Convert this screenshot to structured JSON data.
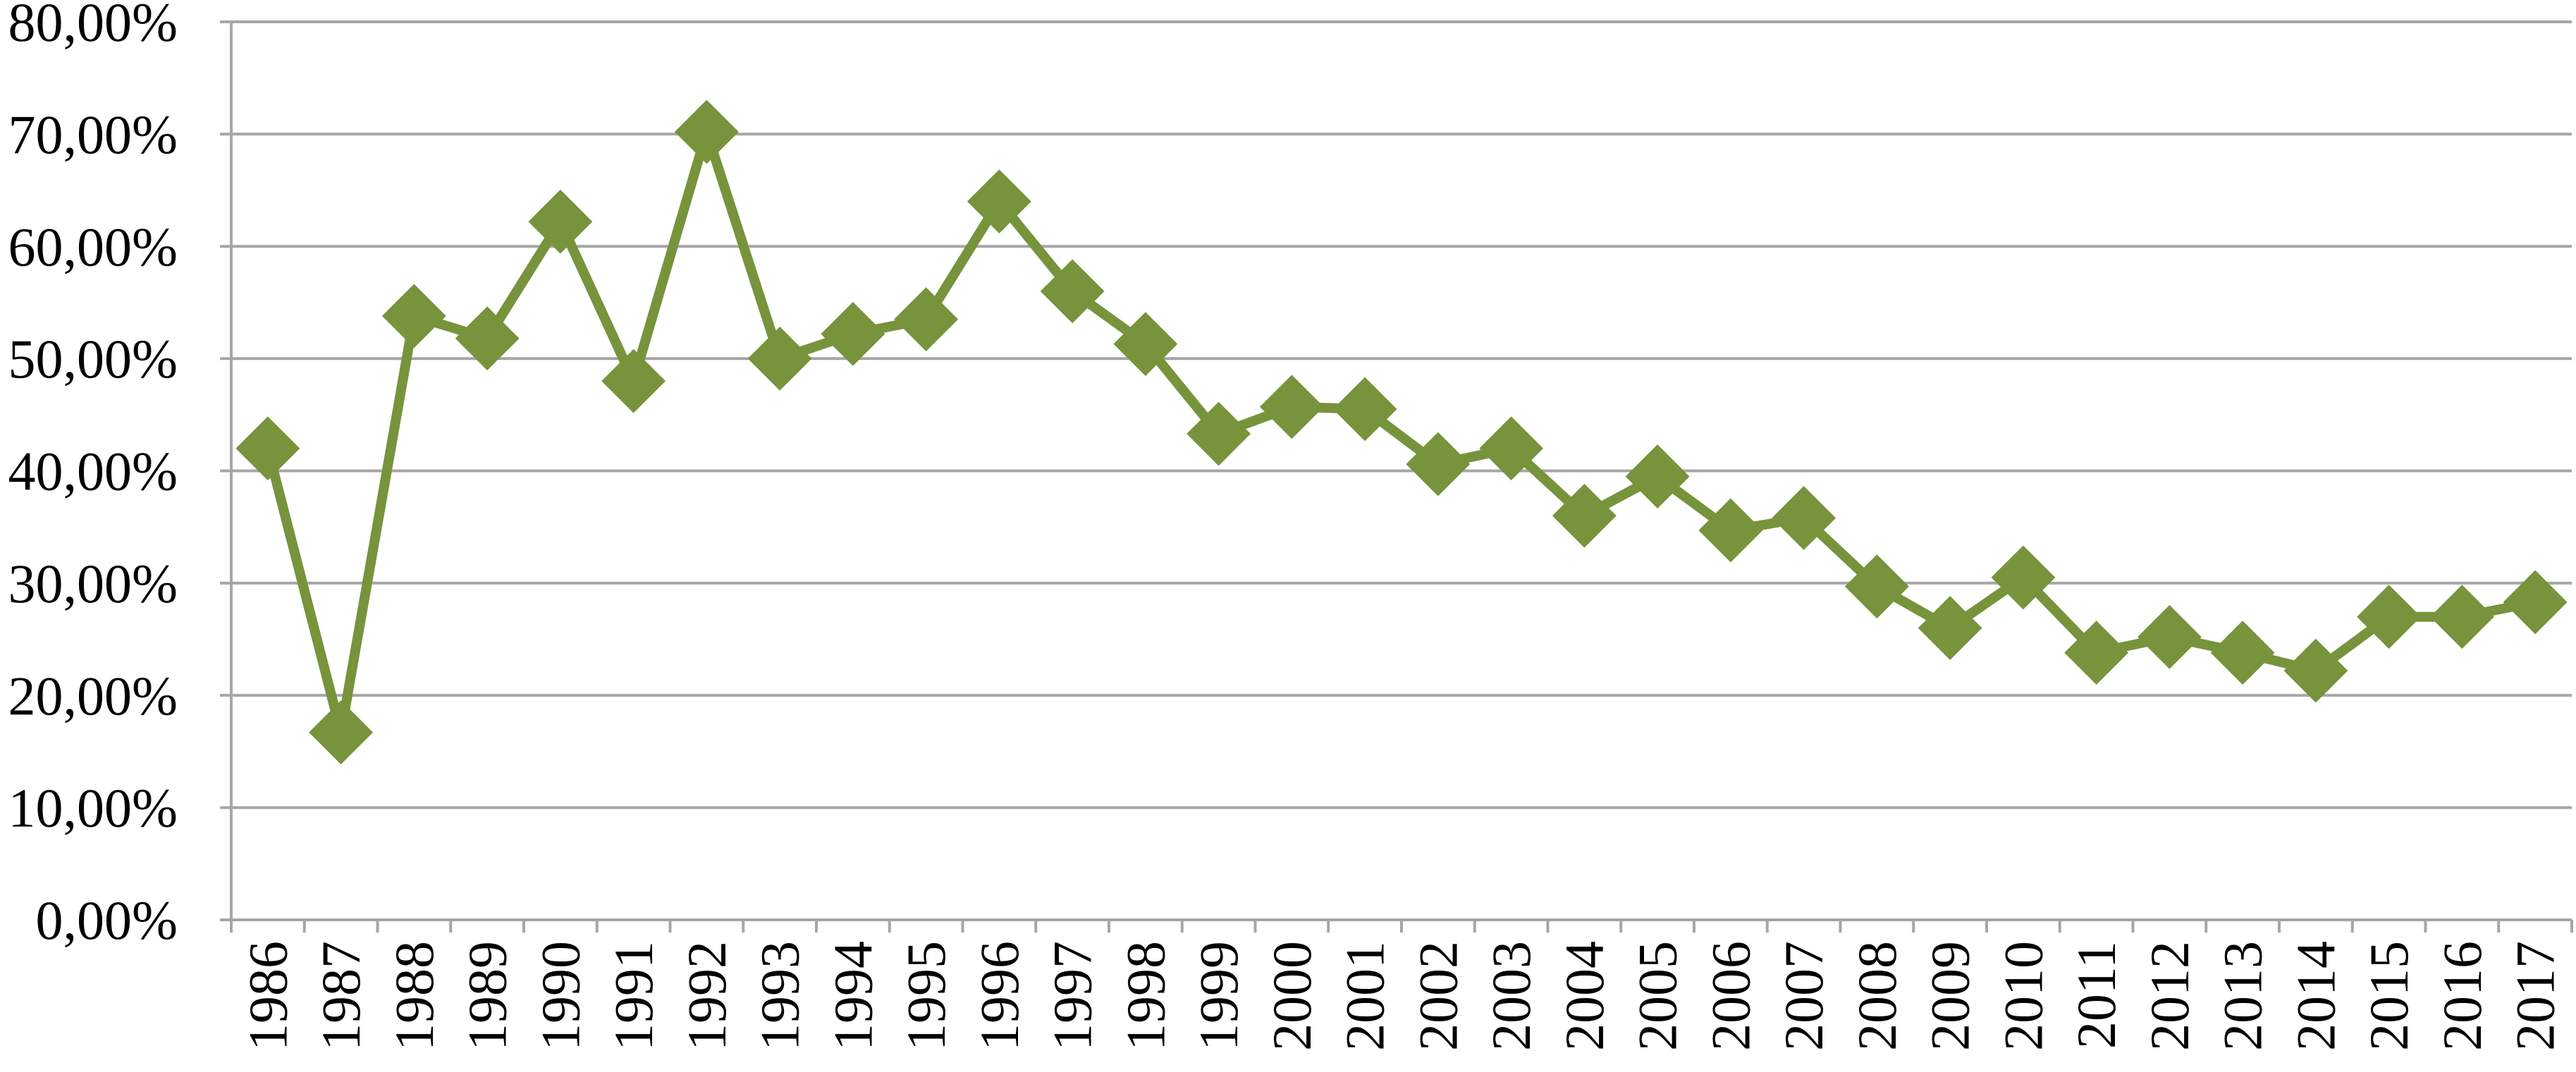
{
  "chart_data": {
    "type": "line",
    "title": "",
    "xlabel": "",
    "ylabel": "",
    "ylim": [
      0,
      80
    ],
    "y_ticks": [
      "0,00%",
      "10,00%",
      "20,00%",
      "30,00%",
      "40,00%",
      "50,00%",
      "60,00%",
      "70,00%",
      "80,00%"
    ],
    "grid": true,
    "legend": "none",
    "categories": [
      "1986",
      "1987",
      "1988",
      "1989",
      "1990",
      "1991",
      "1992",
      "1993",
      "1994",
      "1995",
      "1996",
      "1997",
      "1998",
      "1999",
      "2000",
      "2001",
      "2002",
      "2003",
      "2004",
      "2005",
      "2006",
      "2007",
      "2008",
      "2009",
      "2010",
      "2011",
      "2012",
      "2013",
      "2014",
      "2015",
      "2016",
      "2017"
    ],
    "series": [
      {
        "values": [
          42.0,
          16.7,
          53.8,
          51.8,
          62.2,
          48.0,
          70.2,
          50.0,
          52.2,
          53.5,
          64.0,
          56.0,
          51.3,
          43.3,
          45.7,
          45.5,
          40.6,
          42.0,
          36.0,
          39.5,
          34.7,
          35.8,
          29.7,
          26.0,
          30.5,
          23.8,
          25.2,
          23.8,
          22.2,
          27.0,
          27.0,
          28.3
        ],
        "color": "#77933c",
        "marker": "diamond"
      }
    ]
  }
}
